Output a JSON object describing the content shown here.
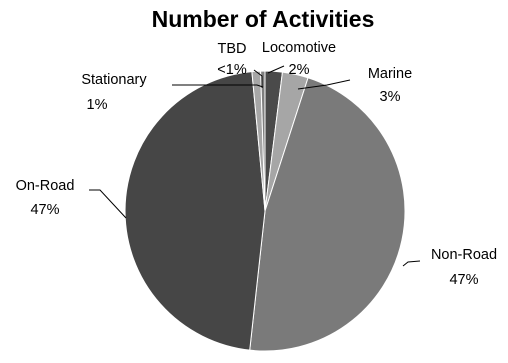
{
  "chart_data": {
    "type": "pie",
    "title": "Number of Activities",
    "slices": [
      {
        "name": "Locomotive",
        "value": 2,
        "label_text": "2%",
        "color": "#4a4a4a"
      },
      {
        "name": "Marine",
        "value": 3,
        "label_text": "3%",
        "color": "#a6a6a6"
      },
      {
        "name": "Non-Road",
        "value": 47,
        "label_text": "47%",
        "color": "#7a7a7a"
      },
      {
        "name": "On-Road",
        "value": 47,
        "label_text": "47%",
        "color": "#464646"
      },
      {
        "name": "Stationary",
        "value": 1,
        "label_text": "1%",
        "color": "#a6a6a6"
      },
      {
        "name": "TBD",
        "value": 0.5,
        "label_text": "<1%",
        "color": "#7f7f7f"
      }
    ],
    "legend": "none",
    "slice_borders": "#ffffff"
  }
}
